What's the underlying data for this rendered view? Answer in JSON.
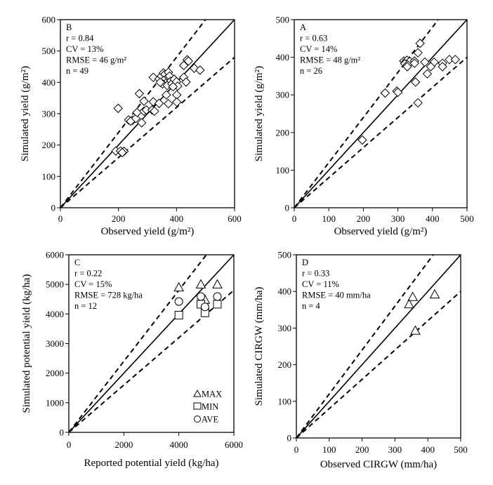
{
  "chart_data": [
    {
      "panel": "B",
      "type": "scatter",
      "xlabel": "Observed yield (g/m²)",
      "ylabel": "Simulated yield (g/m²)",
      "xlim": [
        0,
        600
      ],
      "ylim": [
        0,
        600
      ],
      "xticks": [
        "0",
        "200",
        "400",
        "600"
      ],
      "yticks": [
        "0",
        "100",
        "200",
        "300",
        "400",
        "500",
        "600"
      ],
      "annotations": [
        "B",
        "r = 0.84",
        "CV = 13%",
        "RMSE = 46 g/m²",
        "n = 49"
      ],
      "reference_lines": {
        "one_to_one": 1.0,
        "upper_bound": 1.2,
        "lower_bound": 0.8
      },
      "marker": "diamond",
      "points": [
        [
          199,
          317
        ],
        [
          191,
          181
        ],
        [
          207,
          181
        ],
        [
          219,
          180
        ],
        [
          213,
          176
        ],
        [
          235,
          280
        ],
        [
          248,
          279
        ],
        [
          242,
          276
        ],
        [
          260,
          285
        ],
        [
          264,
          304
        ],
        [
          272,
          364
        ],
        [
          288,
          340
        ],
        [
          280,
          271
        ],
        [
          288,
          308
        ],
        [
          296,
          312
        ],
        [
          316,
          312
        ],
        [
          320,
          338
        ],
        [
          324,
          308
        ],
        [
          340,
          333
        ],
        [
          320,
          416
        ],
        [
          340,
          411
        ],
        [
          348,
          420
        ],
        [
          355,
          430
        ],
        [
          360,
          426
        ],
        [
          368,
          414
        ],
        [
          372,
          432
        ],
        [
          356,
          406
        ],
        [
          364,
          398
        ],
        [
          376,
          420
        ],
        [
          380,
          404
        ],
        [
          352,
          395
        ],
        [
          368,
          390
        ],
        [
          384,
          396
        ],
        [
          392,
          410
        ],
        [
          400,
          402
        ],
        [
          404,
          388
        ],
        [
          365,
          360
        ],
        [
          372,
          332
        ],
        [
          401,
          360
        ],
        [
          401,
          337
        ],
        [
          425,
          416
        ],
        [
          433,
          401
        ],
        [
          425,
          454
        ],
        [
          437,
          472
        ],
        [
          441,
          468
        ],
        [
          461,
          445
        ],
        [
          481,
          439
        ],
        [
          388,
          386
        ],
        [
          344,
          400
        ]
      ]
    },
    {
      "panel": "A",
      "type": "scatter",
      "xlabel": "Observed yield (g/m²)",
      "ylabel": "Simulated yield (g/m²)",
      "xlim": [
        0,
        500
      ],
      "ylim": [
        0,
        500
      ],
      "xticks": [
        "0",
        "100",
        "200",
        "300",
        "400",
        "500"
      ],
      "yticks": [
        "0",
        "100",
        "200",
        "300",
        "400",
        "500"
      ],
      "annotations": [
        "A",
        "r = 0.63",
        "CV = 14%",
        "RMSE = 48 g/m²",
        "n = 26"
      ],
      "reference_lines": {
        "one_to_one": 1.0,
        "upper_bound": 1.2,
        "lower_bound": 0.8
      },
      "marker": "diamond",
      "points": [
        [
          364,
          437
        ],
        [
          358,
          412
        ],
        [
          317,
          390
        ],
        [
          322,
          387
        ],
        [
          326,
          392
        ],
        [
          330,
          385
        ],
        [
          334,
          389
        ],
        [
          320,
          383
        ],
        [
          328,
          380
        ],
        [
          348,
          390
        ],
        [
          348,
          384
        ],
        [
          327,
          375
        ],
        [
          378,
          387
        ],
        [
          405,
          387
        ],
        [
          395,
          375
        ],
        [
          429,
          384
        ],
        [
          429,
          375
        ],
        [
          449,
          394
        ],
        [
          466,
          394
        ],
        [
          385,
          356
        ],
        [
          351,
          334
        ],
        [
          263,
          305
        ],
        [
          297,
          310
        ],
        [
          300,
          307
        ],
        [
          358,
          279
        ],
        [
          197,
          180
        ]
      ]
    },
    {
      "panel": "C",
      "type": "scatter",
      "xlabel": "Reported potential yield (kg/ha)",
      "ylabel": "Simulated potential yield (kg/ha)",
      "xlim": [
        0,
        6000
      ],
      "ylim": [
        0,
        6000
      ],
      "xticks": [
        "0",
        "2000",
        "4000",
        "6000"
      ],
      "yticks": [
        "0",
        "1000",
        "2000",
        "3000",
        "4000",
        "5000",
        "6000"
      ],
      "annotations": [
        "C",
        "r = 0.22",
        "CV = 15%",
        "RMSE = 728 kg/ha",
        "n = 12"
      ],
      "reference_lines": {
        "one_to_one": 1.0,
        "upper_bound": 1.2,
        "lower_bound": 0.8
      },
      "legend": {
        "position": "bottom-right",
        "entries": [
          "MAX",
          "MIN",
          "AVE"
        ]
      },
      "series": [
        {
          "name": "MAX",
          "marker": "triangle",
          "points": [
            [
              4000,
              4900
            ],
            [
              4800,
              5000
            ],
            [
              5400,
              5000
            ],
            [
              4950,
              4480
            ]
          ]
        },
        {
          "name": "MIN",
          "marker": "square",
          "points": [
            [
              4000,
              3960
            ],
            [
              4800,
              4330
            ],
            [
              4950,
              4040
            ],
            [
              5400,
              4330
            ]
          ]
        },
        {
          "name": "AVE",
          "marker": "circle",
          "points": [
            [
              4000,
              4420
            ],
            [
              4800,
              4590
            ],
            [
              4950,
              4240
            ],
            [
              5400,
              4590
            ]
          ]
        }
      ]
    },
    {
      "panel": "D",
      "type": "scatter",
      "xlabel": "Observed CIRGW (mm/ha)",
      "ylabel": "Simulated CIRGW (mm/ha)",
      "xlim": [
        0,
        500
      ],
      "ylim": [
        0,
        500
      ],
      "xticks": [
        "0",
        "100",
        "200",
        "300",
        "400",
        "500"
      ],
      "yticks": [
        "0",
        "100",
        "200",
        "300",
        "400",
        "500"
      ],
      "annotations": [
        "D",
        "r = 0.33",
        "CV = 11%",
        "RMSE = 40 mm/ha",
        "n = 4"
      ],
      "reference_lines": {
        "one_to_one": 1.0,
        "upper_bound": 1.2,
        "lower_bound": 0.8
      },
      "marker": "triangle",
      "points": [
        [
          354,
          385
        ],
        [
          343,
          365
        ],
        [
          421,
          392
        ],
        [
          362,
          293
        ]
      ]
    }
  ],
  "colors": {
    "axis": "#000000",
    "marker_stroke": "#000000",
    "marker_fill": "#ffffff",
    "background": "#ffffff"
  }
}
